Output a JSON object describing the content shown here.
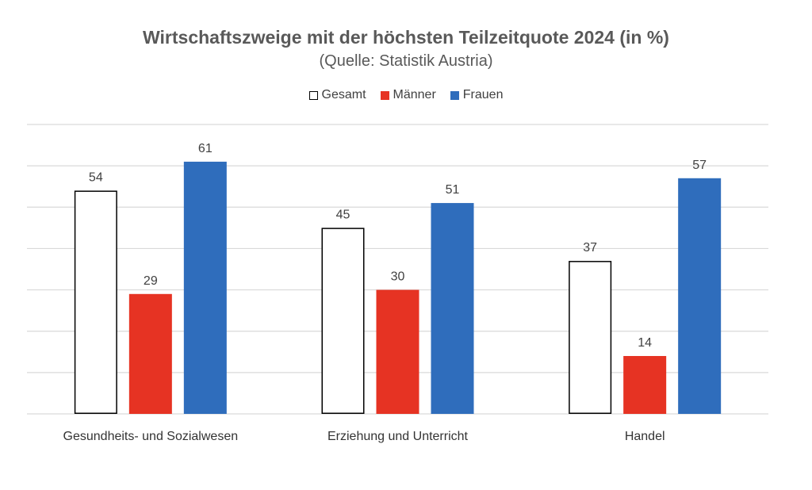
{
  "chart_data": {
    "type": "bar",
    "title": "Wirtschaftszweige mit der höchsten Teilzeitquote 2024 (in %)",
    "subtitle": "(Quelle: Statistik Austria)",
    "categories": [
      "Gesundheits- und Sozialwesen",
      "Erziehung und Unterricht",
      "Handel"
    ],
    "series": [
      {
        "name": "Gesamt",
        "values": [
          54,
          45,
          37
        ],
        "color": "#ffffff",
        "stroke": "#000000"
      },
      {
        "name": "Männer",
        "values": [
          29,
          30,
          14
        ],
        "color": "#e63323",
        "stroke": "#e63323"
      },
      {
        "name": "Frauen",
        "values": [
          61,
          51,
          57
        ],
        "color": "#2f6dbc",
        "stroke": "#2f6dbc"
      }
    ],
    "ylim": [
      0,
      70
    ],
    "y_grid_step": 10,
    "grid": true,
    "legend_position": "top-center",
    "xlabel": "",
    "ylabel": ""
  }
}
